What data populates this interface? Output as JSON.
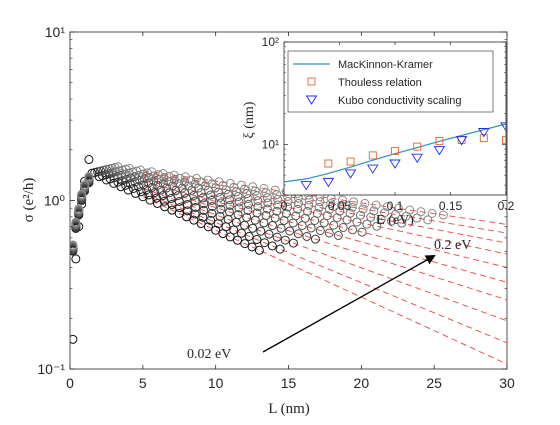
{
  "chart_data": [
    {
      "type": "scatter",
      "title": "",
      "xlabel": "L (nm)",
      "ylabel": "σ (e²/h)",
      "xlim": [
        0,
        30
      ],
      "ylim": [
        0.1,
        10
      ],
      "yscale": "log",
      "xticks": [
        "0",
        "5",
        "10",
        "15",
        "20",
        "25",
        "30"
      ],
      "yticks": [
        {
          "value": 0.1,
          "label": "10⁻¹"
        },
        {
          "value": 1,
          "label": "10⁰"
        },
        {
          "value": 10,
          "label": "10¹"
        }
      ],
      "grid": false,
      "annotations": {
        "arrow_start_label": "0.02 eV",
        "arrow_end_label": "0.2 eV"
      },
      "series": [
        {
          "energy": 0.02,
          "peak_length": 1.5,
          "color": "#111111"
        },
        {
          "energy": 0.04,
          "peak_length": 1.7,
          "color": "#1f1f1f"
        },
        {
          "energy": 0.06,
          "peak_length": 1.9,
          "color": "#2e2e2e"
        },
        {
          "energy": 0.08,
          "peak_length": 2.1,
          "color": "#3c3c3c"
        },
        {
          "energy": 0.1,
          "peak_length": 2.3,
          "color": "#4a4a4a"
        },
        {
          "energy": 0.12,
          "peak_length": 2.5,
          "color": "#585858"
        },
        {
          "energy": 0.14,
          "peak_length": 2.7,
          "color": "#666666"
        },
        {
          "energy": 0.16,
          "peak_length": 2.9,
          "color": "#737373"
        },
        {
          "energy": 0.18,
          "peak_length": 3.1,
          "color": "#808080"
        },
        {
          "energy": 0.2,
          "peak_length": 3.3,
          "color": "#8d8d8d"
        }
      ],
      "fit_line_color": "#e8473c"
    },
    {
      "type": "line",
      "title": "",
      "xlabel": "E (eV)",
      "ylabel": "ξ (nm)",
      "xlim": [
        0,
        0.2
      ],
      "ylim": [
        1,
        100
      ],
      "yscale": "log",
      "xticks": [
        "0",
        "0.05",
        "0.1",
        "0.15",
        "0.2"
      ],
      "yticks": [
        {
          "value": 10,
          "label": "10¹"
        },
        {
          "value": 100,
          "label": "10²"
        }
      ],
      "legend": {
        "position": "top",
        "entries": [
          {
            "label": "MacKinnon-Kramer",
            "marker": "line",
            "color": "#2e8fb7"
          },
          {
            "label": "Thouless relation",
            "marker": "square",
            "color": "#d9692e"
          },
          {
            "label": "Kubo conductivity scaling",
            "marker": "triangle-down",
            "color": "#1f2ee8"
          }
        ]
      },
      "series": [
        {
          "name": "MacKinnon-Kramer",
          "x": [
            0,
            0.02,
            0.04,
            0.06,
            0.08,
            0.1,
            0.12,
            0.14,
            0.16,
            0.18,
            0.2
          ],
          "y": [
            4.3,
            4.6,
            5.2,
            6.0,
            7.0,
            8.1,
            9.3,
            10.7,
            12.2,
            13.9,
            15.8
          ]
        },
        {
          "name": "Thouless relation",
          "x": [
            0.04,
            0.06,
            0.08,
            0.1,
            0.12,
            0.14,
            0.16,
            0.18,
            0.2
          ],
          "y": [
            6.5,
            6.8,
            7.8,
            8.6,
            9.5,
            10.8,
            11.0,
            11.5,
            11.0
          ]
        },
        {
          "name": "Kubo conductivity scaling",
          "x": [
            0.02,
            0.04,
            0.06,
            0.08,
            0.1,
            0.12,
            0.14,
            0.16,
            0.18,
            0.2
          ],
          "y": [
            4.0,
            4.3,
            5.2,
            5.8,
            6.5,
            7.4,
            8.8,
            11.0,
            13.2,
            15.0
          ]
        }
      ]
    }
  ]
}
